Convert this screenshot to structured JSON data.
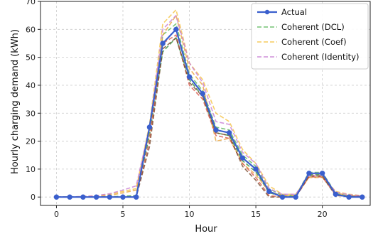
{
  "chart_data": {
    "type": "line",
    "xlabel": "Hour",
    "ylabel": "Hourly charging demand (kWh)",
    "xlim": [
      -1.2,
      23.6
    ],
    "ylim": [
      -3,
      70
    ],
    "xticks": [
      0,
      5,
      10,
      15,
      20
    ],
    "yticks": [
      0,
      10,
      20,
      30,
      40,
      50,
      60,
      70
    ],
    "grid": true,
    "legend_position": "top-right",
    "x": [
      0,
      1,
      2,
      3,
      4,
      5,
      6,
      7,
      8,
      9,
      10,
      11,
      12,
      13,
      14,
      15,
      16,
      17,
      18,
      19,
      20,
      21,
      22,
      23
    ],
    "series": [
      {
        "name": "Actual",
        "color": "#3a5fcd",
        "style": "solid-marker",
        "legend": true,
        "values": [
          0,
          0,
          0,
          0,
          0,
          0,
          0,
          25,
          55,
          60,
          43,
          37,
          24,
          23,
          14,
          10,
          2,
          0,
          0,
          8.5,
          8.5,
          1,
          0,
          0
        ]
      },
      {
        "name": "Coherent (DCL)",
        "color": "#5cb85c",
        "style": "dashed",
        "legend": true,
        "values": [
          0,
          0,
          0,
          0.1,
          0.1,
          0.3,
          0.5,
          24,
          58,
          62,
          44,
          38,
          25,
          24,
          15,
          11,
          3,
          0.5,
          0.5,
          8.8,
          8.8,
          1.5,
          0.3,
          0.3
        ]
      },
      {
        "color": "#2e8b3a",
        "style": "dashed",
        "legend": false,
        "values": [
          0,
          0,
          0,
          0,
          0,
          0.2,
          0.4,
          22,
          52,
          57,
          42,
          36,
          23,
          22,
          13,
          9,
          1.5,
          0.3,
          0.3,
          8,
          8,
          1,
          0.2,
          0.2
        ]
      },
      {
        "name": "Coherent (Coef)",
        "color": "#f5c242",
        "style": "dashed",
        "legend": true,
        "values": [
          0,
          0,
          0.2,
          0.5,
          1,
          2,
          3,
          26,
          62,
          67,
          48,
          42,
          30,
          27,
          17,
          12,
          4,
          1,
          1,
          7.5,
          7.5,
          2,
          1,
          0.5
        ]
      },
      {
        "color": "#e8a33a",
        "style": "dashed",
        "legend": false,
        "values": [
          0,
          0,
          0.1,
          0.3,
          0.6,
          1.5,
          2.5,
          23,
          58,
          65,
          46,
          40,
          20,
          21,
          12,
          8,
          2,
          0.5,
          0.5,
          7,
          7,
          1.5,
          0.5,
          0.3
        ]
      },
      {
        "name": "Coherent (Identity)",
        "color": "#c77dd4",
        "style": "dashed",
        "legend": true,
        "values": [
          0,
          0,
          0.2,
          0.5,
          1.2,
          2.5,
          4,
          25,
          60,
          65,
          48,
          41,
          27,
          26,
          16,
          12,
          3,
          1,
          1,
          7.8,
          7.8,
          1.8,
          0.8,
          0.5
        ]
      },
      {
        "color": "#d9574a",
        "style": "dashed",
        "legend": false,
        "values": [
          0,
          0,
          0,
          0,
          0,
          0,
          0,
          20,
          55,
          58,
          40,
          35,
          22,
          21,
          12,
          7,
          0.5,
          0,
          0,
          7.2,
          7.2,
          0.8,
          0.2,
          0.2
        ]
      },
      {
        "color": "#7a4a2a",
        "style": "dashed",
        "legend": false,
        "values": [
          0,
          0,
          0,
          0,
          0,
          0,
          0,
          18,
          53,
          57,
          41,
          36,
          23,
          22,
          11,
          6,
          0,
          0,
          0,
          7.5,
          7.5,
          0.5,
          0.3,
          0.2
        ]
      }
    ]
  }
}
